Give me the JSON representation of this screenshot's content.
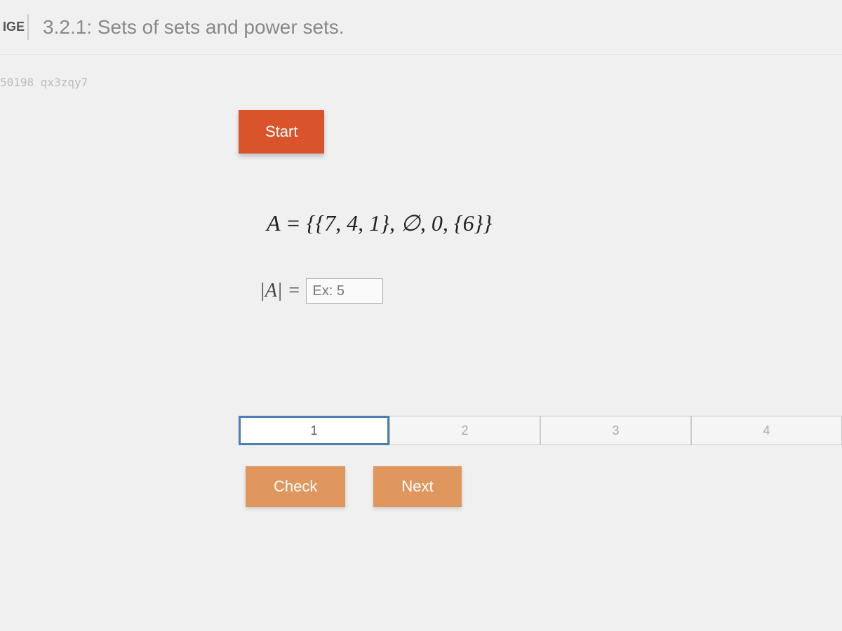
{
  "header": {
    "badge": "IGE",
    "title": "3.2.1: Sets of sets and power sets."
  },
  "watermark": "50198 qx3zqy7",
  "buttons": {
    "start": "Start",
    "check": "Check",
    "next": "Next"
  },
  "problem": {
    "equation": "A = {{7, 4, 1}, ∅, 0, {6}}",
    "cardinality_prefix": "|A| = ",
    "input_placeholder": "Ex: 5"
  },
  "progress": {
    "steps": [
      "1",
      "2",
      "3",
      "4"
    ],
    "active_index": 0
  },
  "colors": {
    "start_btn": "#d9542b",
    "action_btn": "#e0975e",
    "active_border": "#4a7fb5",
    "background": "#f0f0f0",
    "text_muted": "#888"
  }
}
